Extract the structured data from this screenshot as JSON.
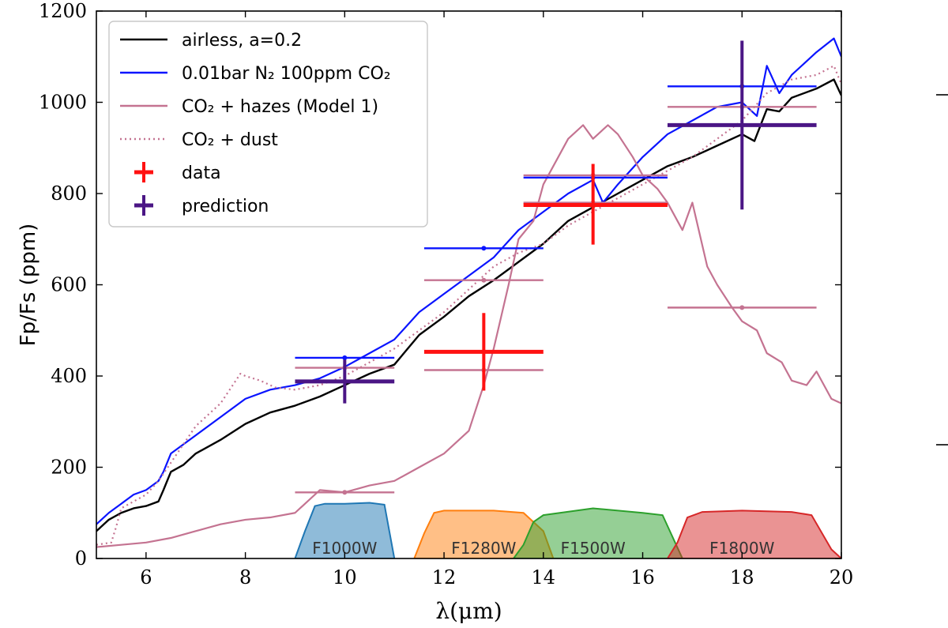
{
  "chart_data": {
    "type": "line",
    "xlabel": "λ(μm)",
    "ylabel": "Fp/Fs (ppm)",
    "xlim": [
      5,
      20
    ],
    "ylim": [
      0,
      1200
    ],
    "xticks": [
      6,
      8,
      10,
      12,
      14,
      16,
      18,
      20
    ],
    "yticks": [
      0,
      200,
      400,
      600,
      800,
      1000,
      1200
    ],
    "grid": false,
    "legend_position": "top-left",
    "colors": {
      "airless": "#000000",
      "n2co2": "#0a14ff",
      "hazes": "#c47391",
      "dust": "#c47391",
      "data": "#ff1111",
      "prediction": "#4b1685"
    },
    "series": [
      {
        "key": "airless",
        "name": "airless, a=0.2",
        "style": "solid",
        "x": [
          5.0,
          5.25,
          5.5,
          5.75,
          6.0,
          6.25,
          6.35,
          6.5,
          6.75,
          7.0,
          7.5,
          8.0,
          8.5,
          9.0,
          9.5,
          10.0,
          10.5,
          11.0,
          11.5,
          12.0,
          12.5,
          13.0,
          13.5,
          14.0,
          14.5,
          15.0,
          15.5,
          16.0,
          16.5,
          17.0,
          17.5,
          18.0,
          18.25,
          18.5,
          18.75,
          19.0,
          19.5,
          19.85,
          20.0
        ],
        "y": [
          60,
          85,
          100,
          110,
          115,
          125,
          150,
          190,
          205,
          230,
          260,
          295,
          320,
          335,
          355,
          380,
          405,
          425,
          490,
          530,
          575,
          610,
          650,
          690,
          740,
          770,
          800,
          830,
          860,
          880,
          905,
          930,
          915,
          985,
          980,
          1010,
          1030,
          1050,
          1015
        ]
      },
      {
        "key": "n2co2",
        "name": "0.01bar N₂ 100ppm CO₂",
        "style": "solid",
        "x": [
          5.0,
          5.25,
          5.5,
          5.75,
          6.0,
          6.25,
          6.35,
          6.5,
          6.75,
          7.0,
          7.5,
          8.0,
          8.5,
          9.0,
          9.5,
          10.0,
          10.5,
          11.0,
          11.5,
          12.0,
          12.5,
          13.0,
          13.5,
          14.0,
          14.5,
          15.0,
          15.2,
          15.5,
          16.0,
          16.5,
          17.0,
          17.5,
          18.0,
          18.3,
          18.5,
          18.75,
          19.0,
          19.5,
          19.85,
          20.0
        ],
        "y": [
          75,
          100,
          120,
          140,
          150,
          170,
          190,
          230,
          250,
          270,
          310,
          350,
          370,
          380,
          395,
          420,
          450,
          480,
          540,
          580,
          620,
          660,
          720,
          760,
          800,
          830,
          780,
          820,
          880,
          930,
          960,
          990,
          1000,
          970,
          1080,
          1020,
          1060,
          1110,
          1140,
          1100
        ]
      },
      {
        "key": "hazes",
        "name": "CO₂ + hazes (Model 1)",
        "style": "solid",
        "x": [
          5.0,
          5.5,
          6.0,
          6.5,
          7.0,
          7.5,
          8.0,
          8.5,
          9.0,
          9.5,
          10.0,
          10.5,
          11.0,
          11.5,
          12.0,
          12.5,
          12.8,
          13.0,
          13.3,
          13.5,
          13.8,
          14.0,
          14.3,
          14.5,
          14.8,
          15.0,
          15.3,
          15.5,
          15.8,
          16.0,
          16.3,
          16.5,
          16.8,
          17.0,
          17.3,
          17.5,
          17.8,
          18.0,
          18.3,
          18.5,
          18.8,
          19.0,
          19.3,
          19.5,
          19.8,
          20.0
        ],
        "y": [
          25,
          30,
          35,
          45,
          60,
          75,
          85,
          90,
          100,
          150,
          145,
          160,
          170,
          200,
          230,
          280,
          380,
          460,
          600,
          700,
          740,
          820,
          880,
          920,
          950,
          920,
          950,
          930,
          880,
          840,
          810,
          780,
          720,
          780,
          640,
          600,
          550,
          520,
          500,
          450,
          430,
          390,
          380,
          410,
          350,
          340
        ]
      },
      {
        "key": "dust",
        "name": "CO₂ + dust",
        "style": "dotted",
        "x": [
          5.0,
          5.3,
          5.4,
          5.5,
          5.75,
          6.0,
          6.25,
          6.5,
          6.75,
          7.0,
          7.5,
          7.9,
          8.0,
          8.3,
          8.6,
          9.0,
          9.5,
          10.0,
          10.5,
          11.0,
          11.5,
          12.0,
          12.5,
          13.0,
          13.5,
          14.0,
          14.5,
          15.0,
          15.5,
          16.0,
          16.5,
          17.0,
          17.5,
          18.0,
          18.5,
          19.0,
          19.5,
          19.85,
          20.0
        ],
        "y": [
          30,
          35,
          70,
          110,
          125,
          140,
          170,
          210,
          250,
          290,
          340,
          405,
          400,
          390,
          375,
          370,
          380,
          400,
          430,
          460,
          500,
          540,
          590,
          640,
          670,
          690,
          730,
          760,
          790,
          820,
          850,
          880,
          920,
          960,
          1020,
          1050,
          1060,
          1080,
          1040
        ]
      }
    ],
    "band_points": [
      {
        "series": "n2co2",
        "x": [
          9.0,
          11.0
        ],
        "y": 440,
        "marker_x": 10.0
      },
      {
        "series": "n2co2",
        "x": [
          11.6,
          14.0
        ],
        "y": 680,
        "marker_x": 12.8
      },
      {
        "series": "n2co2",
        "x": [
          13.6,
          16.5
        ],
        "y": 835,
        "marker_x": 15.0
      },
      {
        "series": "n2co2",
        "x": [
          16.5,
          19.5
        ],
        "y": 1035,
        "marker_x": 18.0
      },
      {
        "series": "hazes",
        "x": [
          9.0,
          11.0
        ],
        "y": 145,
        "marker_x": 10.0
      },
      {
        "series": "hazes",
        "x": [
          9.0,
          11.0
        ],
        "y": 418,
        "marker_x": 10.0
      },
      {
        "series": "hazes",
        "x": [
          11.6,
          14.0
        ],
        "y": 610,
        "marker_x": 12.8
      },
      {
        "series": "hazes",
        "x": [
          11.6,
          14.0
        ],
        "y": 413,
        "marker_x": 12.8
      },
      {
        "series": "hazes",
        "x": [
          13.6,
          16.5
        ],
        "y": 840,
        "marker_x": 15.0
      },
      {
        "series": "hazes",
        "x": [
          13.6,
          16.5
        ],
        "y": 780,
        "marker_x": 15.0
      },
      {
        "series": "hazes",
        "x": [
          16.5,
          19.5
        ],
        "y": 990,
        "marker_x": 18.0
      },
      {
        "series": "hazes",
        "x": [
          16.5,
          19.5
        ],
        "y": 550,
        "marker_x": 18.0
      }
    ],
    "data_points": [
      {
        "x": 12.8,
        "y": 453,
        "xerr": [
          11.6,
          14.0
        ],
        "yerr": [
          368,
          538
        ]
      },
      {
        "x": 15.0,
        "y": 775,
        "xerr": [
          13.6,
          16.5
        ],
        "yerr": [
          688,
          865
        ]
      }
    ],
    "prediction_points": [
      {
        "x": 10.0,
        "y": 388,
        "xerr": [
          9.0,
          11.0
        ],
        "yerr": [
          340,
          436
        ]
      },
      {
        "x": 18.0,
        "y": 950,
        "xerr": [
          16.5,
          19.5
        ],
        "yerr": [
          765,
          1135
        ]
      }
    ],
    "filters": [
      {
        "name": "F1000W",
        "color": "#1f77b4",
        "x": [
          9.0,
          9.2,
          9.4,
          9.6,
          10.0,
          10.5,
          10.8,
          11.0
        ],
        "y": [
          0,
          60,
          115,
          120,
          120,
          122,
          118,
          0
        ],
        "label_x": 10.0
      },
      {
        "name": "F1280W",
        "color": "#ff7f0e",
        "x": [
          11.4,
          11.6,
          11.8,
          12.0,
          13.0,
          13.6,
          14.0,
          14.2
        ],
        "y": [
          0,
          55,
          100,
          105,
          105,
          100,
          60,
          0
        ],
        "label_x": 12.8
      },
      {
        "name": "F1500W",
        "color": "#2ca02c",
        "x": [
          13.4,
          13.6,
          13.8,
          14.0,
          15.0,
          16.0,
          16.4,
          16.8
        ],
        "y": [
          0,
          30,
          80,
          95,
          110,
          100,
          95,
          0
        ],
        "label_x": 15.0
      },
      {
        "name": "F1800W",
        "color": "#d62728",
        "x": [
          16.5,
          16.7,
          16.9,
          17.2,
          18.0,
          19.0,
          19.4,
          19.8,
          20.0
        ],
        "y": [
          0,
          35,
          90,
          102,
          105,
          102,
          95,
          20,
          0
        ],
        "label_x": 18.0
      }
    ],
    "legend": [
      {
        "key": "airless",
        "label": "airless, a=0.2",
        "marker": "line"
      },
      {
        "key": "n2co2",
        "label": "0.01bar N₂ 100ppm CO₂",
        "marker": "line"
      },
      {
        "key": "hazes",
        "label": "CO₂ + hazes (Model 1)",
        "marker": "line"
      },
      {
        "key": "dust",
        "label": "CO₂ + dust",
        "marker": "dotted"
      },
      {
        "key": "data",
        "label": "data",
        "marker": "cross"
      },
      {
        "key": "prediction",
        "label": "prediction",
        "marker": "cross"
      }
    ]
  }
}
